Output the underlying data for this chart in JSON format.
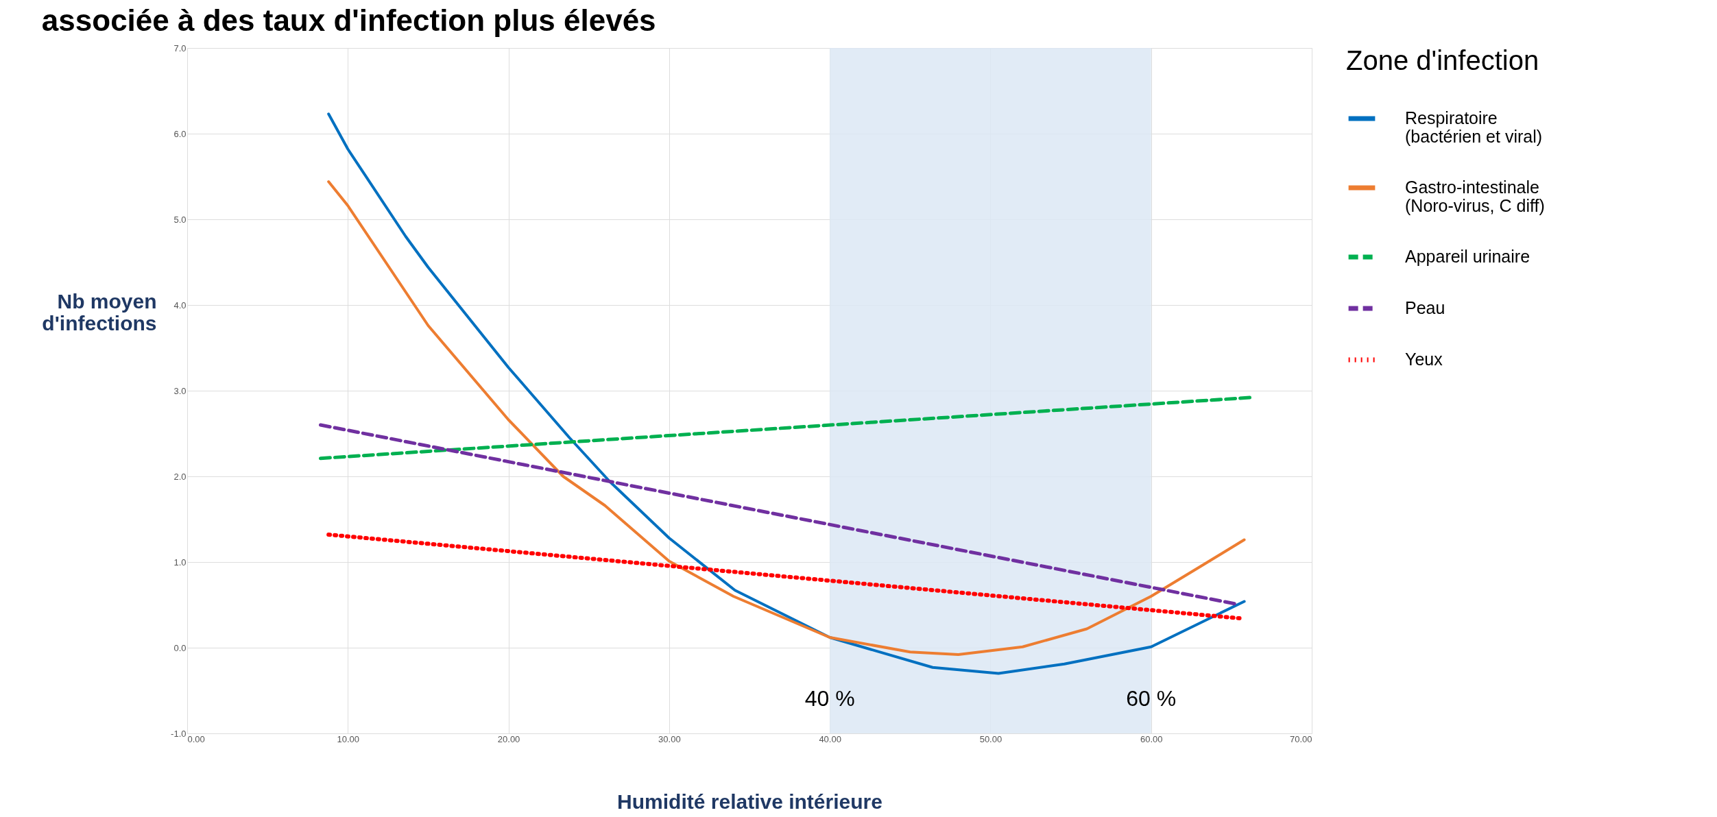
{
  "chart_data": {
    "type": "line",
    "title": "associée à des taux d'infection plus élevés",
    "xlabel": "Humidité relative intérieure",
    "ylabel": "Nb moyen d'infections",
    "legend_title": "Zone d'infection",
    "xlim": [
      0,
      70
    ],
    "xticks": [
      {
        "value": 0,
        "label": "0.00"
      },
      {
        "value": 10,
        "label": "10.00"
      },
      {
        "value": 20,
        "label": "20.00"
      },
      {
        "value": 30,
        "label": "30.00"
      },
      {
        "value": 40,
        "label": "40.00"
      },
      {
        "value": 50,
        "label": "50.00"
      },
      {
        "value": 60,
        "label": "60.00"
      },
      {
        "value": 70,
        "label": "70.00"
      }
    ],
    "ylim": [
      -1,
      7
    ],
    "yticks": [
      {
        "value": -1,
        "label": "-1.0"
      },
      {
        "value": 0,
        "label": "0.0"
      },
      {
        "value": 1,
        "label": "1.0"
      },
      {
        "value": 2,
        "label": "2.0"
      },
      {
        "value": 3,
        "label": "3.0"
      },
      {
        "value": 4,
        "label": "4.0"
      },
      {
        "value": 5,
        "label": "5.0"
      },
      {
        "value": 6,
        "label": "6.0"
      },
      {
        "value": 7,
        "label": "7.0"
      }
    ],
    "grid": true,
    "legend": "right",
    "marker": "none",
    "bands": [
      {
        "axis": "x",
        "from": 40,
        "to": 60,
        "color": "#dce8f5"
      }
    ],
    "annotations": [
      {
        "text": "40 %",
        "x": 40,
        "y": -0.6
      },
      {
        "text": "60 %",
        "x": 60,
        "y": -0.6
      }
    ],
    "series": [
      {
        "name": "Respiratoire (bactérien et viral)",
        "color": "#0070c0",
        "line_style": "solid",
        "x": [
          8.8,
          10,
          13.6,
          15,
          20,
          23.8,
          26.3,
          30,
          34.1,
          40,
          46.4,
          50.5,
          54.6,
          60,
          65.8
        ],
        "values": [
          6.23,
          5.82,
          4.8,
          4.44,
          3.27,
          2.45,
          1.94,
          1.28,
          0.67,
          0.12,
          -0.23,
          -0.3,
          -0.19,
          0.01,
          0.54
        ]
      },
      {
        "name": "Gastro-intestinale (Noro-virus, C diff)",
        "color": "#ed7d31",
        "line_style": "solid",
        "x": [
          8.8,
          10,
          15,
          20,
          23.4,
          26,
          30,
          34,
          40,
          45,
          48,
          52,
          56,
          60,
          63,
          65.8
        ],
        "values": [
          5.44,
          5.16,
          3.76,
          2.66,
          2.0,
          1.66,
          1.01,
          0.6,
          0.12,
          -0.05,
          -0.08,
          0.01,
          0.22,
          0.6,
          0.94,
          1.26
        ]
      },
      {
        "name": "Appareil urinaire",
        "color": "#00b050",
        "line_style": "dashed",
        "x": [
          8.3,
          66.2
        ],
        "values": [
          2.21,
          2.92
        ]
      },
      {
        "name": "Peau",
        "color": "#7030a0",
        "line_style": "dashed",
        "x": [
          8.3,
          65.3
        ],
        "values": [
          2.6,
          0.51
        ]
      },
      {
        "name": "Yeux",
        "color": "#ff0000",
        "line_style": "dotted",
        "x": [
          8.8,
          65.7
        ],
        "values": [
          1.32,
          0.34
        ]
      }
    ]
  }
}
